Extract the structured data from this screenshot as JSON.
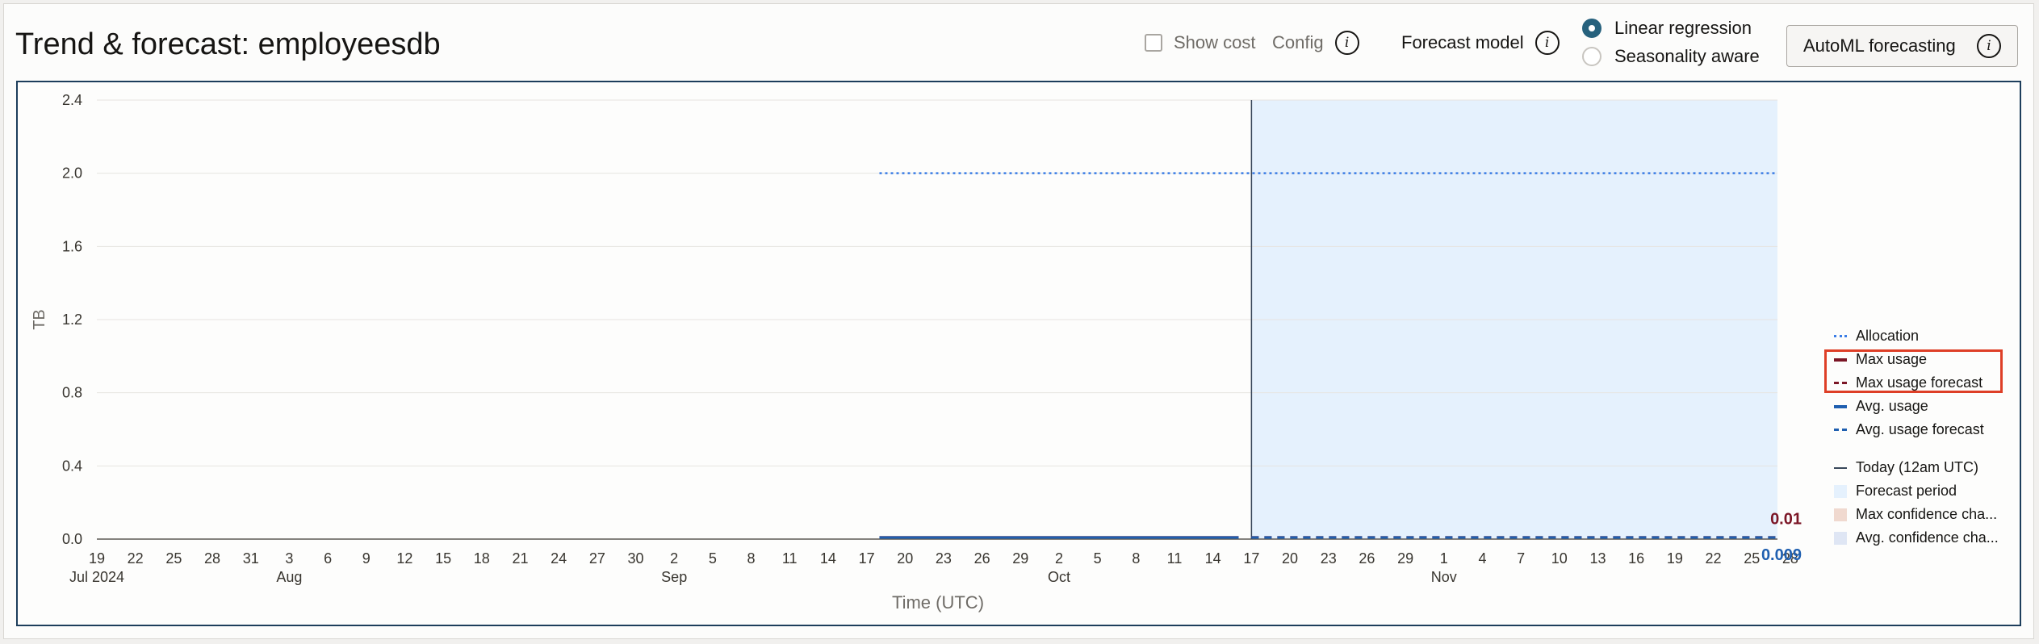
{
  "header": {
    "title": "Trend & forecast: employeesdb",
    "show_cost_label": "Show cost",
    "config_label": "Config",
    "forecast_model_label": "Forecast model",
    "forecast_options": [
      {
        "label": "Linear regression",
        "selected": true
      },
      {
        "label": "Seasonality aware",
        "selected": false
      }
    ],
    "automl_button_label": "AutoML forecasting",
    "info_icon_glyph": "i"
  },
  "colors": {
    "allocation": "#3a7de6",
    "max_usage": "#7b1626",
    "avg_usage": "#1f5fb0",
    "forecast_period": "#e5f1fd",
    "max_confidence": "#f0d9cf",
    "avg_confidence": "#dfe6f4",
    "today_line": "#38475a",
    "highlight_box": "#de3f27"
  },
  "chart_data": {
    "type": "line",
    "ylabel": "TB",
    "xlabel": "Time (UTC)",
    "ylim": [
      0,
      2.4
    ],
    "y_ticks": [
      "0.0",
      "0.4",
      "0.8",
      "1.2",
      "1.6",
      "2.0",
      "2.4"
    ],
    "grid": true,
    "legend_position": "right",
    "x_range": [
      "2024-07-19",
      "2024-11-27"
    ],
    "x_tick_labels": [
      "19",
      "22",
      "25",
      "28",
      "31",
      "3",
      "6",
      "9",
      "12",
      "15",
      "18",
      "21",
      "24",
      "27",
      "30",
      "2",
      "5",
      "8",
      "11",
      "14",
      "17",
      "20",
      "23",
      "26",
      "29",
      "2",
      "5",
      "8",
      "11",
      "14",
      "17",
      "20",
      "23",
      "26",
      "29",
      "1",
      "4",
      "7",
      "10",
      "13",
      "16",
      "19",
      "22",
      "25",
      "28"
    ],
    "x_month_labels": [
      {
        "label": "Jul 2024",
        "date": "2024-07-19"
      },
      {
        "label": "Aug",
        "date": "2024-08-03"
      },
      {
        "label": "Sep",
        "date": "2024-09-02"
      },
      {
        "label": "Oct",
        "date": "2024-10-02"
      },
      {
        "label": "Nov",
        "date": "2024-11-01"
      }
    ],
    "today": "2024-10-17",
    "forecast_period": [
      "2024-10-17",
      "2024-11-27"
    ],
    "series": [
      {
        "name": "Allocation",
        "style": "dotted",
        "x": [
          "2024-09-18",
          "2024-11-27"
        ],
        "y": [
          2.0,
          2.0
        ]
      },
      {
        "name": "Max usage",
        "style": "solid",
        "x": [
          "2024-09-18",
          "2024-10-16"
        ],
        "y": [
          0.01,
          0.01
        ]
      },
      {
        "name": "Max usage forecast",
        "style": "dashed",
        "x": [
          "2024-10-17",
          "2024-11-27"
        ],
        "y": [
          0.01,
          0.01
        ]
      },
      {
        "name": "Avg. usage",
        "style": "solid",
        "x": [
          "2024-09-18",
          "2024-10-16"
        ],
        "y": [
          0.009,
          0.009
        ]
      },
      {
        "name": "Avg. usage forecast",
        "style": "dashed",
        "x": [
          "2024-10-17",
          "2024-11-27"
        ],
        "y": [
          0.009,
          0.009
        ]
      }
    ],
    "end_labels": {
      "max": "0.01",
      "avg": "0.009"
    },
    "legend": [
      {
        "label": "Allocation",
        "kind": "dotted",
        "color": "#3a7de6"
      },
      {
        "label": "Max usage",
        "kind": "solid",
        "color": "#7b1626"
      },
      {
        "label": "Max usage forecast",
        "kind": "dashed",
        "color": "#7b1626"
      },
      {
        "label": "Avg. usage",
        "kind": "solid",
        "color": "#1f5fb0"
      },
      {
        "label": "Avg. usage forecast",
        "kind": "dashed",
        "color": "#1f5fb0"
      },
      {
        "label": "Today (12am UTC)",
        "kind": "thin",
        "color": "#38475a"
      },
      {
        "label": "Forecast period",
        "kind": "box",
        "color": "#e5f1fd"
      },
      {
        "label": "Max confidence cha...",
        "kind": "box",
        "color": "#f0d9cf"
      },
      {
        "label": "Avg. confidence cha...",
        "kind": "box",
        "color": "#dfe6f4"
      }
    ],
    "highlighted_legend_items": [
      "Max usage",
      "Max usage forecast"
    ]
  }
}
